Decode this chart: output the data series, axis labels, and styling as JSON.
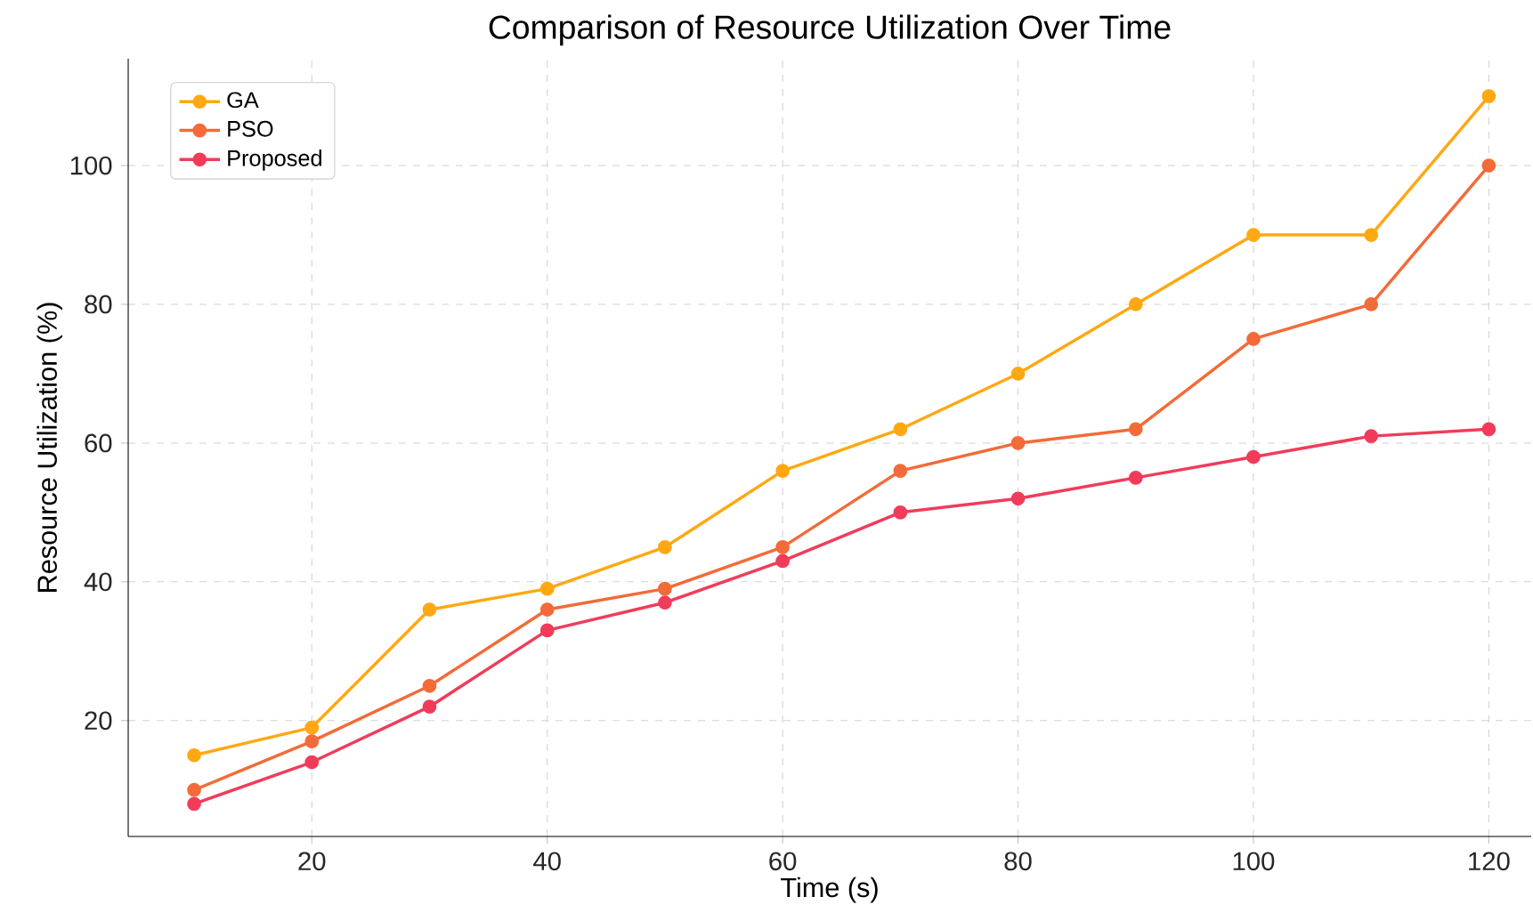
{
  "chart_data": {
    "type": "line",
    "title": "Comparison of Resource Utilization Over Time",
    "xlabel": "Time (s)",
    "ylabel": "Resource Utilization (%)",
    "x": [
      10,
      20,
      30,
      40,
      50,
      60,
      70,
      80,
      90,
      100,
      110,
      120
    ],
    "series": [
      {
        "name": "GA",
        "color": "#ffa812",
        "values": [
          15,
          19,
          36,
          39,
          45,
          56,
          62,
          70,
          80,
          90,
          90,
          110
        ]
      },
      {
        "name": "PSO",
        "color": "#f26b38",
        "values": [
          10,
          17,
          25,
          36,
          39,
          45,
          56,
          60,
          62,
          75,
          80,
          100
        ]
      },
      {
        "name": "Proposed",
        "color": "#f03c5a",
        "values": [
          8,
          14,
          22,
          33,
          37,
          43,
          50,
          52,
          55,
          58,
          61,
          62
        ]
      }
    ],
    "xlim": [
      4.4,
      123.6
    ],
    "ylim": [
      3.3,
      115.4
    ],
    "xticks": [
      20,
      40,
      60,
      80,
      100,
      120
    ],
    "yticks": [
      20,
      40,
      60,
      80,
      100
    ],
    "grid": true,
    "legend": "top left",
    "marker": "circle",
    "line_style": "solid"
  }
}
